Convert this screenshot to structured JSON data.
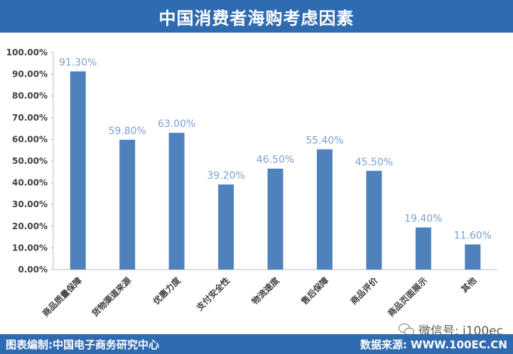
{
  "header": {
    "title": "中国消费者海购考虑因素"
  },
  "footer": {
    "left_text": "图表编制:中国电子商务研究中心",
    "right_text": "数据来源: WWW.100EC.CN"
  },
  "watermark": {
    "text": "微信号: i100ec",
    "icon": "wechat-icon"
  },
  "colors": {
    "bar": "#4f81bd",
    "label": "#7aa0d2",
    "header": "#2f6bb0"
  },
  "chart_data": {
    "type": "bar",
    "title": "中国消费者海购考虑因素",
    "categories": [
      "商品质量保障",
      "货物渠道来源",
      "优惠力度",
      "支付安全性",
      "物流速度",
      "售后保障",
      "商品评价",
      "商品页面展示",
      "其他"
    ],
    "values": [
      91.3,
      59.8,
      63.0,
      39.2,
      46.5,
      55.4,
      45.5,
      19.4,
      11.6
    ],
    "value_labels": [
      "91.30%",
      "59.80%",
      "63.00%",
      "39.20%",
      "46.50%",
      "55.40%",
      "45.50%",
      "19.40%",
      "11.60%"
    ],
    "y_ticks": [
      "0.00%",
      "10.00%",
      "20.00%",
      "30.00%",
      "40.00%",
      "50.00%",
      "60.00%",
      "70.00%",
      "80.00%",
      "90.00%",
      "100.00%"
    ],
    "ylim": [
      0,
      100
    ],
    "grid": false,
    "legend": "none",
    "xlabel": "",
    "ylabel": ""
  }
}
